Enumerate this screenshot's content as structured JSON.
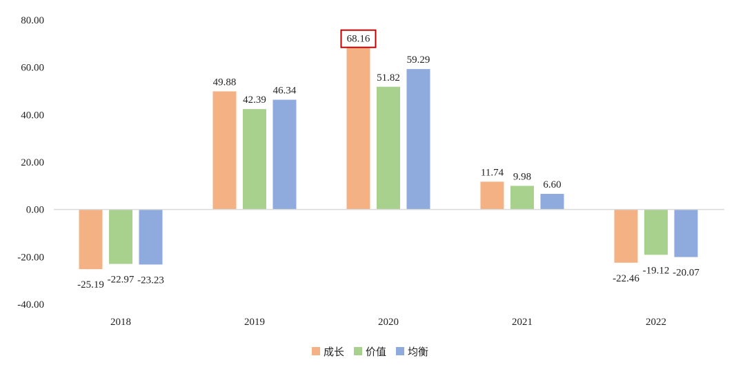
{
  "chart_data": {
    "type": "bar",
    "categories": [
      "2018",
      "2019",
      "2020",
      "2021",
      "2022"
    ],
    "series": [
      {
        "name": "成长",
        "color": "#f4b183",
        "values": [
          -25.19,
          49.88,
          68.16,
          11.74,
          -22.46
        ],
        "labels": [
          "-25.19",
          "49.88",
          "68.16",
          "11.74",
          "-22.46"
        ]
      },
      {
        "name": "价值",
        "color": "#a9d18e",
        "values": [
          -22.97,
          42.39,
          51.82,
          9.98,
          -19.12
        ],
        "labels": [
          "-22.97",
          "42.39",
          "51.82",
          "9.98",
          "-19.12"
        ]
      },
      {
        "name": "均衡",
        "color": "#8faadc",
        "values": [
          -23.23,
          46.34,
          59.29,
          6.6,
          -20.07
        ],
        "labels": [
          "-23.23",
          "46.34",
          "59.29",
          "6.60",
          "-20.07"
        ]
      }
    ],
    "y_ticks": [
      "80.00",
      "60.00",
      "40.00",
      "20.00",
      "0.00",
      "-20.00",
      "-40.00"
    ],
    "ylim": [
      -40,
      80
    ],
    "legend_position": "bottom-center",
    "grid": false,
    "highlight": {
      "series": "成长",
      "category": "2020",
      "color": "#c00000"
    }
  }
}
